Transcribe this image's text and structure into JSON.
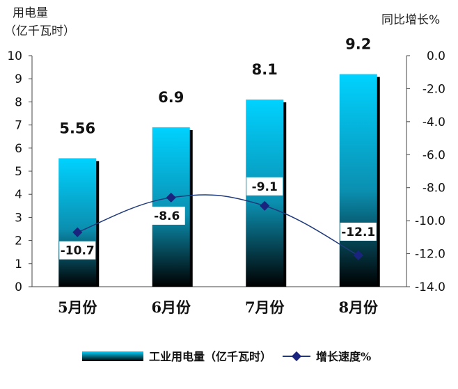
{
  "chart_data": {
    "type": "bar",
    "categories": [
      "5月份",
      "6月份",
      "7月份",
      "8月份"
    ],
    "series": [
      {
        "name": "工业用电量（亿千瓦时）",
        "type": "bar",
        "axis": "left",
        "values": [
          5.56,
          6.9,
          8.1,
          9.2
        ],
        "labels": [
          "5.56",
          "6.9",
          "8.1",
          "9.2"
        ]
      },
      {
        "name": "增长速度%",
        "type": "line",
        "axis": "right",
        "values": [
          -10.7,
          -8.6,
          -9.1,
          -12.1
        ],
        "labels": [
          "-10.7",
          "-8.6",
          "-9.1",
          "-12.1"
        ]
      }
    ],
    "left_axis": {
      "title_line1": "用电量",
      "title_line2": "（亿千瓦时）",
      "ylim": [
        0,
        10
      ],
      "ticks": [
        "0",
        "1",
        "2",
        "3",
        "4",
        "5",
        "6",
        "7",
        "8",
        "9",
        "10"
      ]
    },
    "right_axis": {
      "title": "同比增长%",
      "ylim": [
        -14,
        0
      ],
      "ticks": [
        "0.0",
        "-2.0",
        "-4.0",
        "-6.0",
        "-8.0",
        "-10.0",
        "-12.0",
        "-14.0"
      ]
    },
    "legend_position": "bottom",
    "grid": false,
    "colors": {
      "bar_top": "#00d2ff",
      "bar_mid": "#0b8fb0",
      "bar_bottom": "#000000",
      "bar_shadow": "#000000",
      "line": "#1f3a7a",
      "marker": "#1a237e"
    }
  }
}
